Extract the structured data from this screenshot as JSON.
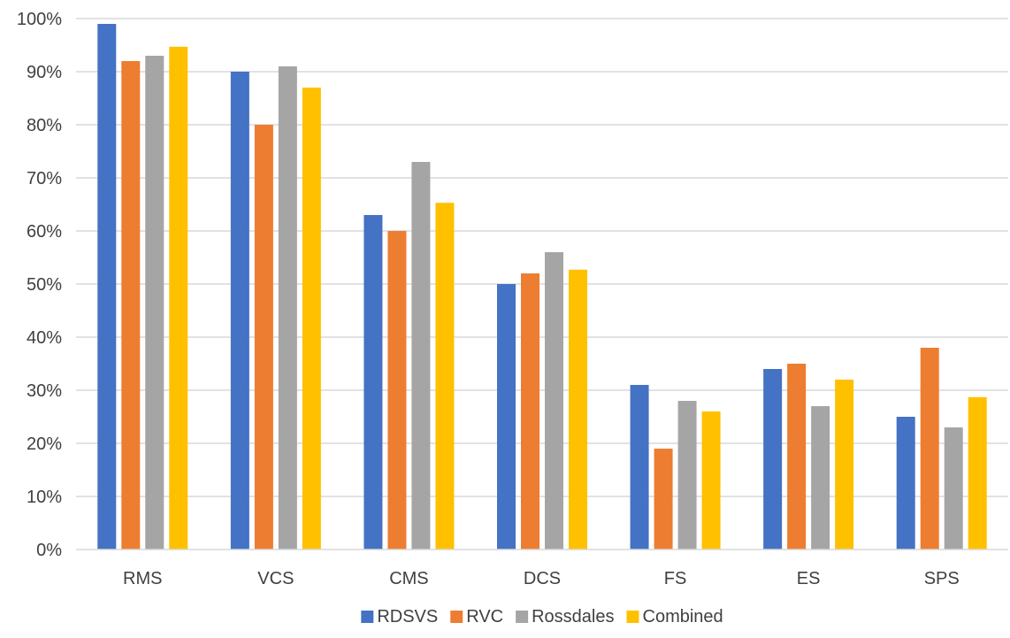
{
  "chart_data": {
    "type": "bar",
    "categories": [
      "RMS",
      "VCS",
      "CMS",
      "DCS",
      "FS",
      "ES",
      "SPS"
    ],
    "series": [
      {
        "name": "RDSVS",
        "color": "#4472C4",
        "values": [
          99,
          90,
          63,
          50,
          31,
          34,
          25
        ]
      },
      {
        "name": "RVC",
        "color": "#ED7D31",
        "values": [
          92,
          80,
          60,
          52,
          19,
          35,
          38
        ]
      },
      {
        "name": "Rossdales",
        "color": "#A5A5A5",
        "values": [
          93,
          91,
          73,
          56,
          28,
          27,
          23
        ]
      },
      {
        "name": "Combined",
        "color": "#FFC000",
        "values": [
          94.7,
          87,
          65.3,
          52.7,
          26,
          32,
          28.7
        ]
      }
    ],
    "ylim": [
      0,
      100
    ],
    "yticks": [
      "0%",
      "10%",
      "20%",
      "30%",
      "40%",
      "50%",
      "60%",
      "70%",
      "80%",
      "90%",
      "100%"
    ],
    "grid": true,
    "legend_position": "bottom",
    "gridline_color": "#D9D9D9"
  }
}
